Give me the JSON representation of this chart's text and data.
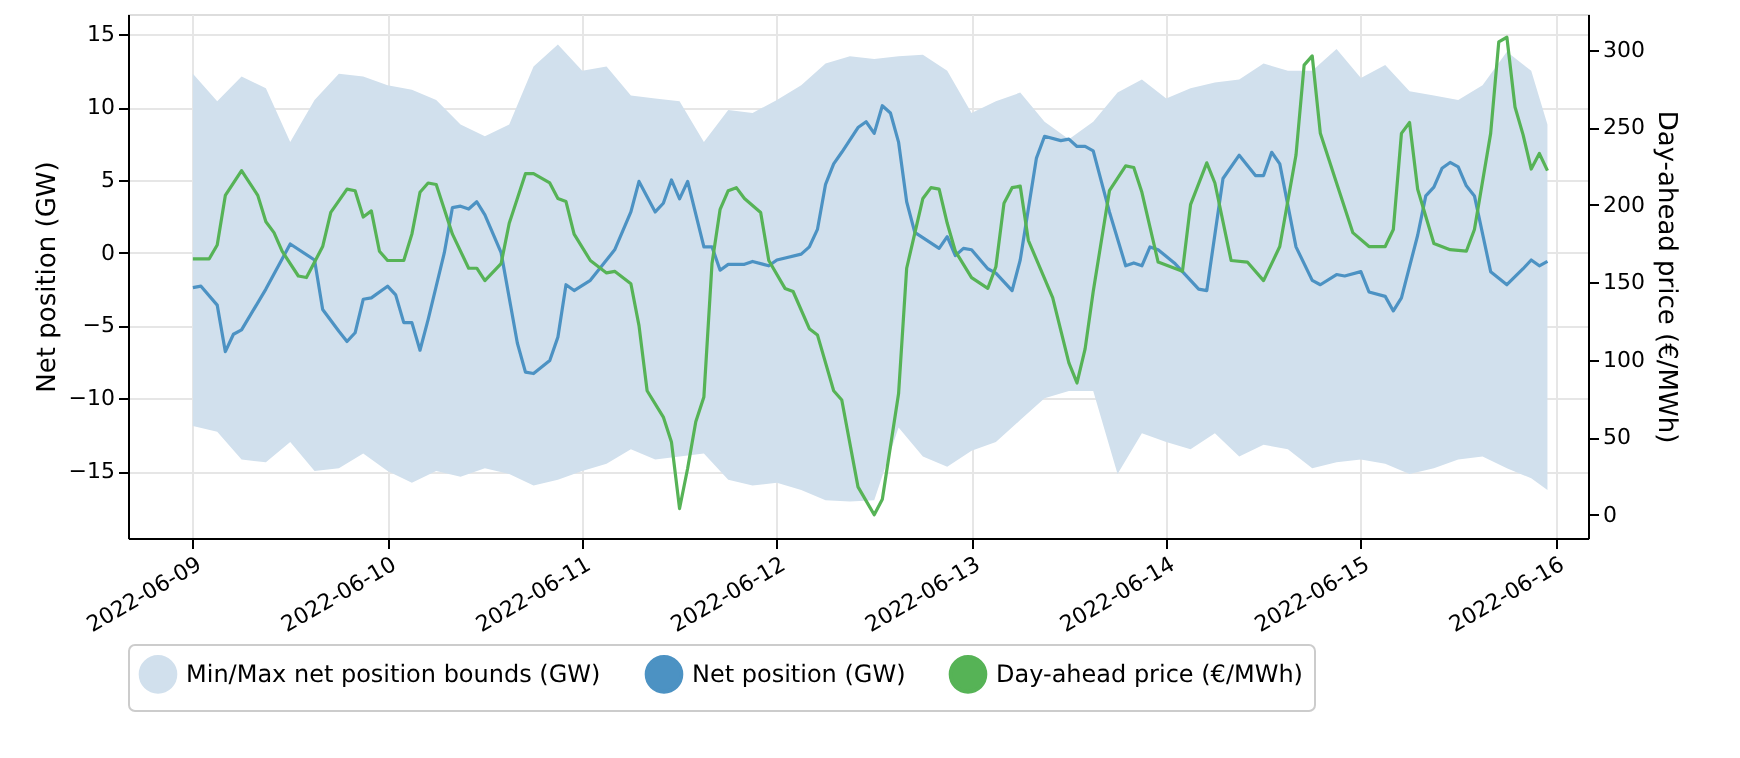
{
  "chart_data": {
    "type": "line",
    "xlabel": null,
    "ylabel": "Net position (GW)",
    "y2label": "Day-ahead price (€/MWh)",
    "xlim": [
      "2022-06-08T16:00",
      "2022-06-16T04:00"
    ],
    "xticks": [
      {
        "value": "2022-06-09",
        "label": "2022-06-09"
      },
      {
        "value": "2022-06-10",
        "label": "2022-06-10"
      },
      {
        "value": "2022-06-11",
        "label": "2022-06-11"
      },
      {
        "value": "2022-06-12",
        "label": "2022-06-12"
      },
      {
        "value": "2022-06-13",
        "label": "2022-06-13"
      },
      {
        "value": "2022-06-14",
        "label": "2022-06-14"
      },
      {
        "value": "2022-06-15",
        "label": "2022-06-15"
      },
      {
        "value": "2022-06-16",
        "label": "2022-06-16"
      }
    ],
    "ylim": [
      -19.6,
      16.4
    ],
    "yticks": [
      -15,
      -10,
      -5,
      0,
      5,
      10,
      15
    ],
    "y2lim": [
      -15,
      323
    ],
    "y2ticks": [
      0,
      50,
      100,
      150,
      200,
      250,
      300
    ],
    "grid": true,
    "legend": "bottom",
    "series": [
      {
        "name": "Min/Max net position bounds (GW)",
        "type": "area",
        "color": "#d1e0ed",
        "x": [
          "2022-06-09T00:00",
          "2022-06-09T03:00",
          "2022-06-09T06:00",
          "2022-06-09T09:00",
          "2022-06-09T12:00",
          "2022-06-09T15:00",
          "2022-06-09T18:00",
          "2022-06-09T21:00",
          "2022-06-10T00:00",
          "2022-06-10T03:00",
          "2022-06-10T06:00",
          "2022-06-10T09:00",
          "2022-06-10T12:00",
          "2022-06-10T15:00",
          "2022-06-10T18:00",
          "2022-06-10T21:00",
          "2022-06-11T00:00",
          "2022-06-11T03:00",
          "2022-06-11T06:00",
          "2022-06-11T09:00",
          "2022-06-11T12:00",
          "2022-06-11T15:00",
          "2022-06-11T18:00",
          "2022-06-11T21:00",
          "2022-06-12T00:00",
          "2022-06-12T03:00",
          "2022-06-12T06:00",
          "2022-06-12T09:00",
          "2022-06-12T12:00",
          "2022-06-12T15:00",
          "2022-06-12T18:00",
          "2022-06-12T21:00",
          "2022-06-13T00:00",
          "2022-06-13T03:00",
          "2022-06-13T06:00",
          "2022-06-13T09:00",
          "2022-06-13T12:00",
          "2022-06-13T15:00",
          "2022-06-13T18:00",
          "2022-06-13T21:00",
          "2022-06-14T00:00",
          "2022-06-14T03:00",
          "2022-06-14T06:00",
          "2022-06-14T09:00",
          "2022-06-14T12:00",
          "2022-06-14T15:00",
          "2022-06-14T18:00",
          "2022-06-14T21:00",
          "2022-06-15T00:00",
          "2022-06-15T03:00",
          "2022-06-15T06:00",
          "2022-06-15T09:00",
          "2022-06-15T12:00",
          "2022-06-15T15:00",
          "2022-06-15T18:00",
          "2022-06-15T21:00",
          "2022-06-15T23:00"
        ],
        "values": [
          null,
          null,
          null,
          null,
          null,
          null,
          null,
          null,
          null,
          null,
          null,
          null,
          null,
          null,
          null,
          null,
          null,
          null,
          null,
          null,
          null,
          null,
          null,
          null,
          null,
          null,
          null,
          null,
          null,
          null,
          null,
          null,
          null,
          null,
          null,
          null,
          null,
          null,
          null,
          null,
          null,
          null,
          null,
          null,
          null,
          null,
          null,
          null,
          null,
          null,
          null,
          null,
          null,
          null,
          null,
          null,
          null
        ],
        "upper": [
          12.3,
          10.4,
          12.1,
          11.3,
          7.6,
          10.5,
          12.3,
          12.1,
          11.5,
          11.2,
          10.5,
          8.8,
          8.0,
          8.8,
          12.8,
          14.3,
          12.5,
          12.8,
          10.8,
          10.6,
          10.4,
          7.6,
          9.8,
          9.6,
          10.5,
          11.5,
          13.0,
          13.5,
          13.3,
          13.5,
          13.6,
          12.5,
          9.6,
          10.4,
          11.0,
          9.0,
          7.8,
          9.0,
          11.0,
          11.9,
          10.6,
          11.3,
          11.7,
          11.9,
          13.0,
          12.5,
          12.5,
          14.0,
          12.0,
          12.9,
          11.1,
          10.8,
          10.5,
          11.5,
          13.8,
          12.5,
          8.8
        ],
        "lower": [
          -11.9,
          -12.3,
          -14.2,
          -14.4,
          -13.0,
          -15.0,
          -14.8,
          -13.8,
          -15.0,
          -15.8,
          -15.0,
          -15.4,
          -14.8,
          -15.2,
          -16.0,
          -15.6,
          -15.0,
          -14.5,
          -13.5,
          -14.2,
          -14.0,
          -13.8,
          -15.6,
          -16.0,
          -15.8,
          -16.3,
          -17.0,
          -17.1,
          -17.0,
          -12.0,
          -14.0,
          -14.7,
          -13.6,
          -13.0,
          -11.5,
          -10.0,
          -9.5,
          -9.5,
          -15.2,
          -12.4,
          -13.0,
          -13.5,
          -12.4,
          -14.0,
          -13.2,
          -13.5,
          -14.8,
          -14.4,
          -14.2,
          -14.5,
          -15.2,
          -14.8,
          -14.2,
          -14.0,
          -14.8,
          -15.5,
          -16.3
        ]
      },
      {
        "name": "Net position (GW)",
        "color": "#4c92c3",
        "x": [
          "2022-06-09T00:00",
          "2022-06-09T01:00",
          "2022-06-09T03:00",
          "2022-06-09T04:00",
          "2022-06-09T05:00",
          "2022-06-09T06:00",
          "2022-06-09T09:00",
          "2022-06-09T12:00",
          "2022-06-09T15:00",
          "2022-06-09T16:00",
          "2022-06-09T18:00",
          "2022-06-09T19:00",
          "2022-06-09T20:00",
          "2022-06-09T21:00",
          "2022-06-09T22:00",
          "2022-06-10T00:00",
          "2022-06-10T01:00",
          "2022-06-10T02:00",
          "2022-06-10T03:00",
          "2022-06-10T04:00",
          "2022-06-10T05:00",
          "2022-06-10T07:00",
          "2022-06-10T08:00",
          "2022-06-10T09:00",
          "2022-06-10T10:00",
          "2022-06-10T11:00",
          "2022-06-10T12:00",
          "2022-06-10T14:00",
          "2022-06-10T16:00",
          "2022-06-10T17:00",
          "2022-06-10T18:00",
          "2022-06-10T20:00",
          "2022-06-10T21:00",
          "2022-06-10T22:00",
          "2022-06-10T23:00",
          "2022-06-11T01:00",
          "2022-06-11T04:00",
          "2022-06-11T06:00",
          "2022-06-11T07:00",
          "2022-06-11T09:00",
          "2022-06-11T10:00",
          "2022-06-11T11:00",
          "2022-06-11T12:00",
          "2022-06-11T13:00",
          "2022-06-11T15:00",
          "2022-06-11T16:00",
          "2022-06-11T17:00",
          "2022-06-11T18:00",
          "2022-06-11T20:00",
          "2022-06-11T21:00",
          "2022-06-11T23:00",
          "2022-06-12T00:00",
          "2022-06-12T03:00",
          "2022-06-12T04:00",
          "2022-06-12T05:00",
          "2022-06-12T06:00",
          "2022-06-12T07:00",
          "2022-06-12T08:00",
          "2022-06-12T10:00",
          "2022-06-12T11:00",
          "2022-06-12T12:00",
          "2022-06-12T13:00",
          "2022-06-12T14:00",
          "2022-06-12T15:00",
          "2022-06-12T16:00",
          "2022-06-12T17:00",
          "2022-06-12T20:00",
          "2022-06-12T21:00",
          "2022-06-12T22:00",
          "2022-06-12T23:00",
          "2022-06-13T00:00",
          "2022-06-13T02:00",
          "2022-06-13T03:00",
          "2022-06-13T05:00",
          "2022-06-13T06:00",
          "2022-06-13T08:00",
          "2022-06-13T09:00",
          "2022-06-13T11:00",
          "2022-06-13T12:00",
          "2022-06-13T13:00",
          "2022-06-13T14:00",
          "2022-06-13T15:00",
          "2022-06-13T17:00",
          "2022-06-13T19:00",
          "2022-06-13T20:00",
          "2022-06-13T21:00",
          "2022-06-13T22:00",
          "2022-06-13T23:00",
          "2022-06-14T01:00",
          "2022-06-14T04:00",
          "2022-06-14T05:00",
          "2022-06-14T07:00",
          "2022-06-14T09:00",
          "2022-06-14T11:00",
          "2022-06-14T12:00",
          "2022-06-14T13:00",
          "2022-06-14T14:00",
          "2022-06-14T16:00",
          "2022-06-14T18:00",
          "2022-06-14T19:00",
          "2022-06-14T21:00",
          "2022-06-14T22:00",
          "2022-06-15T00:00",
          "2022-06-15T01:00",
          "2022-06-15T03:00",
          "2022-06-15T04:00",
          "2022-06-15T05:00",
          "2022-06-15T07:00",
          "2022-06-15T08:00",
          "2022-06-15T09:00",
          "2022-06-15T10:00",
          "2022-06-15T11:00",
          "2022-06-15T12:00",
          "2022-06-15T13:00",
          "2022-06-15T14:00",
          "2022-06-15T16:00",
          "2022-06-15T18:00",
          "2022-06-15T20:00",
          "2022-06-15T21:00",
          "2022-06-15T22:00",
          "2022-06-15T23:00"
        ],
        "values": [
          -2.4,
          -2.3,
          -3.6,
          -6.8,
          -5.6,
          -5.3,
          -2.5,
          0.6,
          -0.5,
          -3.9,
          -5.4,
          -6.1,
          -5.5,
          -3.2,
          -3.1,
          -2.3,
          -2.9,
          -4.8,
          -4.8,
          -6.7,
          -4.6,
          0,
          3.1,
          3.2,
          3.0,
          3.5,
          2.6,
          0,
          -6.2,
          -8.2,
          -8.3,
          -7.4,
          -5.8,
          -2.2,
          -2.6,
          -1.9,
          0.2,
          2.8,
          4.9,
          2.8,
          3.4,
          5.0,
          3.7,
          4.9,
          0.4,
          0.4,
          -1.2,
          -0.8,
          -0.8,
          -0.6,
          -0.9,
          -0.5,
          -0.1,
          0.4,
          1.6,
          4.7,
          6.1,
          6.9,
          8.6,
          9.0,
          8.2,
          10.1,
          9.6,
          7.6,
          3.5,
          1.4,
          0.3,
          1.1,
          -0.2,
          0.3,
          0.2,
          -1.1,
          -1.4,
          -2.6,
          -0.5,
          6.5,
          8.0,
          7.7,
          7.8,
          7.3,
          7.3,
          7.0,
          2.8,
          -0.9,
          -0.7,
          -0.9,
          0.4,
          0.2,
          -0.7,
          -2.5,
          -2.6,
          5.1,
          6.7,
          5.3,
          5.3,
          6.9,
          6.1,
          0.4,
          -1.9,
          -2.2,
          -1.5,
          -1.6,
          -1.3,
          -2.7,
          -3.0,
          -4.0,
          -3.1,
          1.2,
          3.9,
          4.5,
          5.8,
          6.2,
          5.9,
          4.6,
          3.9,
          -1.3,
          -2.2,
          -1.1,
          -0.5,
          -0.9,
          -0.6
        ]
      },
      {
        "name": "Day-ahead price (€/MWh)",
        "axis": "y2",
        "color": "#56b356",
        "x": [
          "2022-06-09T00:00",
          "2022-06-09T02:00",
          "2022-06-09T03:00",
          "2022-06-09T04:00",
          "2022-06-09T06:00",
          "2022-06-09T08:00",
          "2022-06-09T09:00",
          "2022-06-09T10:00",
          "2022-06-09T11:00",
          "2022-06-09T13:00",
          "2022-06-09T14:00",
          "2022-06-09T16:00",
          "2022-06-09T17:00",
          "2022-06-09T19:00",
          "2022-06-09T20:00",
          "2022-06-09T21:00",
          "2022-06-09T22:00",
          "2022-06-09T23:00",
          "2022-06-10T00:00",
          "2022-06-10T02:00",
          "2022-06-10T03:00",
          "2022-06-10T04:00",
          "2022-06-10T05:00",
          "2022-06-10T06:00",
          "2022-06-10T08:00",
          "2022-06-10T10:00",
          "2022-06-10T11:00",
          "2022-06-10T12:00",
          "2022-06-10T14:00",
          "2022-06-10T15:00",
          "2022-06-10T17:00",
          "2022-06-10T18:00",
          "2022-06-10T20:00",
          "2022-06-10T21:00",
          "2022-06-10T22:00",
          "2022-06-10T23:00",
          "2022-06-11T01:00",
          "2022-06-11T03:00",
          "2022-06-11T04:00",
          "2022-06-11T06:00",
          "2022-06-11T07:00",
          "2022-06-11T08:00",
          "2022-06-11T10:00",
          "2022-06-11T11:00",
          "2022-06-11T12:00",
          "2022-06-11T13:00",
          "2022-06-11T14:00",
          "2022-06-11T15:00",
          "2022-06-11T16:00",
          "2022-06-11T17:00",
          "2022-06-11T18:00",
          "2022-06-11T19:00",
          "2022-06-11T20:00",
          "2022-06-11T22:00",
          "2022-06-11T23:00",
          "2022-06-12T01:00",
          "2022-06-12T02:00",
          "2022-06-12T04:00",
          "2022-06-12T05:00",
          "2022-06-12T07:00",
          "2022-06-12T08:00",
          "2022-06-12T10:00",
          "2022-06-12T12:00",
          "2022-06-12T13:00",
          "2022-06-12T15:00",
          "2022-06-12T16:00",
          "2022-06-12T18:00",
          "2022-06-12T19:00",
          "2022-06-12T20:00",
          "2022-06-12T21:00",
          "2022-06-12T22:00",
          "2022-06-13T00:00",
          "2022-06-13T02:00",
          "2022-06-13T03:00",
          "2022-06-13T04:00",
          "2022-06-13T05:00",
          "2022-06-13T06:00",
          "2022-06-13T07:00",
          "2022-06-13T10:00",
          "2022-06-13T12:00",
          "2022-06-13T13:00",
          "2022-06-13T14:00",
          "2022-06-13T15:00",
          "2022-06-13T17:00",
          "2022-06-13T19:00",
          "2022-06-13T20:00",
          "2022-06-13T21:00",
          "2022-06-13T23:00",
          "2022-06-14T02:00",
          "2022-06-14T03:00",
          "2022-06-14T05:00",
          "2022-06-14T06:00",
          "2022-06-14T08:00",
          "2022-06-14T10:00",
          "2022-06-14T12:00",
          "2022-06-14T14:00",
          "2022-06-14T16:00",
          "2022-06-14T17:00",
          "2022-06-14T18:00",
          "2022-06-14T19:00",
          "2022-06-14T21:00",
          "2022-06-14T23:00",
          "2022-06-15T01:00",
          "2022-06-15T03:00",
          "2022-06-15T04:00",
          "2022-06-15T05:00",
          "2022-06-15T06:00",
          "2022-06-15T07:00",
          "2022-06-15T09:00",
          "2022-06-15T11:00",
          "2022-06-15T13:00",
          "2022-06-15T14:00",
          "2022-06-15T16:00",
          "2022-06-15T17:00",
          "2022-06-15T18:00",
          "2022-06-15T19:00",
          "2022-06-15T20:00",
          "2022-06-15T21:00",
          "2022-06-15T22:00",
          "2022-06-15T23:00"
        ],
        "values": [
          165,
          165,
          174,
          206,
          222,
          206,
          189,
          182,
          170,
          154,
          153,
          173,
          195,
          210,
          209,
          192,
          196,
          170,
          164,
          164,
          181,
          208,
          214,
          213,
          181,
          159,
          159,
          151,
          162,
          188,
          220,
          220,
          214,
          204,
          202,
          181,
          164,
          156,
          157,
          149,
          122,
          80,
          63,
          47,
          4,
          30,
          60,
          76,
          162,
          197,
          209,
          211,
          204,
          195,
          164,
          146,
          144,
          120,
          116,
          80,
          74,
          18,
          0,
          10,
          78,
          159,
          204,
          211,
          210,
          188,
          170,
          153,
          146,
          160,
          201,
          211,
          212,
          177,
          140,
          98,
          85,
          107,
          144,
          209,
          225,
          224,
          208,
          163,
          157,
          200,
          227,
          214,
          164,
          163,
          151,
          173,
          232,
          290,
          296,
          246,
          214,
          182,
          173,
          173,
          184,
          246,
          253,
          210,
          175,
          171,
          170,
          184,
          246,
          305,
          308,
          263,
          245,
          223,
          233,
          222
        ]
      }
    ]
  }
}
